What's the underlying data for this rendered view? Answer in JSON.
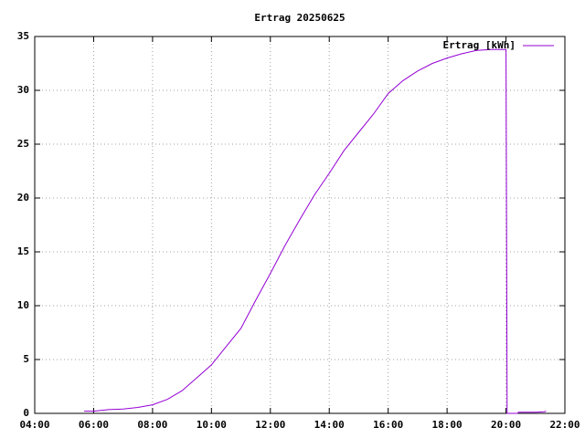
{
  "chart_data": {
    "type": "line",
    "title": "Ertrag 20250625",
    "x": [
      5.68,
      6.0,
      6.5,
      7.0,
      7.5,
      8.0,
      8.5,
      9.0,
      9.5,
      10.0,
      10.5,
      11.0,
      11.5,
      12.0,
      12.5,
      13.0,
      13.5,
      14.0,
      14.5,
      15.0,
      15.5,
      16.0,
      16.5,
      17.0,
      17.5,
      18.0,
      18.5,
      19.0,
      19.5,
      20.0,
      20.02,
      20.04,
      20.4,
      20.42,
      21.0,
      21.3,
      21.36
    ],
    "series": [
      {
        "name": "Ertrag [kWh]",
        "color": "#9400d3",
        "values": [
          0.2,
          0.2,
          0.35,
          0.4,
          0.55,
          0.8,
          1.3,
          2.1,
          3.3,
          4.5,
          6.2,
          7.9,
          10.5,
          13.0,
          15.6,
          18.0,
          20.3,
          22.3,
          24.4,
          26.1,
          27.8,
          29.7,
          30.9,
          31.8,
          32.5,
          33.0,
          33.4,
          33.7,
          33.8,
          33.8,
          17,
          0,
          0,
          0.1,
          0.1,
          0.15,
          0.2
        ]
      }
    ],
    "xlim": [
      4,
      22
    ],
    "xticks": [
      {
        "value": 4,
        "label": "04:00"
      },
      {
        "value": 6,
        "label": "06:00"
      },
      {
        "value": 8,
        "label": "08:00"
      },
      {
        "value": 10,
        "label": "10:00"
      },
      {
        "value": 12,
        "label": "12:00"
      },
      {
        "value": 14,
        "label": "14:00"
      },
      {
        "value": 16,
        "label": "16:00"
      },
      {
        "value": 18,
        "label": "18:00"
      },
      {
        "value": 20,
        "label": "20:00"
      },
      {
        "value": 22,
        "label": "22:00"
      }
    ],
    "ylim": [
      0,
      35
    ],
    "yticks": [
      0,
      5,
      10,
      15,
      20,
      25,
      30,
      35
    ],
    "grid": true,
    "legend": "top-right"
  }
}
